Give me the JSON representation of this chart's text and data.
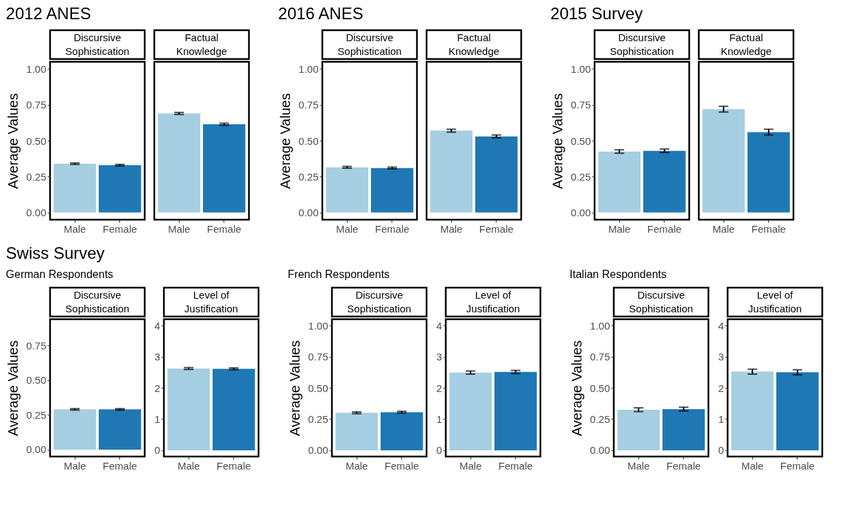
{
  "chart_data": [
    {
      "type": "bar",
      "title": "2012 ANES",
      "subtitle": "Discursive Sophistication",
      "ylabel": "Average Values",
      "categories": [
        "Male",
        "Female"
      ],
      "values": [
        0.34,
        0.33
      ],
      "errors": [
        0.005,
        0.005
      ],
      "colors": [
        "#a6cee3",
        "#1f78b4"
      ],
      "ylim": [
        -0.05,
        1.05
      ],
      "yticks": [
        {
          "value": 0,
          "label": "0.00"
        },
        {
          "value": 0.25,
          "label": "0.25"
        },
        {
          "value": 0.5,
          "label": "0.50"
        },
        {
          "value": 0.75,
          "label": "0.75"
        },
        {
          "value": 1,
          "label": "1.00"
        }
      ]
    },
    {
      "type": "bar",
      "subtitle": "Factual Knowledge",
      "categories": [
        "Male",
        "Female"
      ],
      "values": [
        0.69,
        0.615
      ],
      "errors": [
        0.007,
        0.007
      ],
      "colors": [
        "#a6cee3",
        "#1f78b4"
      ],
      "ylim": [
        -0.05,
        1.05
      ],
      "tick_labels": "x"
    },
    {
      "type": "bar",
      "title": "2016 ANES",
      "subtitle": "Discursive Sophistication",
      "ylabel": "Average Values",
      "categories": [
        "Male",
        "Female"
      ],
      "values": [
        0.315,
        0.31
      ],
      "errors": [
        0.006,
        0.006
      ],
      "colors": [
        "#a6cee3",
        "#1f78b4"
      ],
      "ylim": [
        -0.05,
        1.05
      ],
      "yticks": [
        {
          "value": 0,
          "label": "0.00"
        },
        {
          "value": 0.25,
          "label": "0.25"
        },
        {
          "value": 0.5,
          "label": "0.50"
        },
        {
          "value": 0.75,
          "label": "0.75"
        },
        {
          "value": 1,
          "label": "1.00"
        }
      ]
    },
    {
      "type": "bar",
      "subtitle": "Factual Knowledge",
      "categories": [
        "Male",
        "Female"
      ],
      "values": [
        0.57,
        0.53
      ],
      "errors": [
        0.01,
        0.01
      ],
      "colors": [
        "#a6cee3",
        "#1f78b4"
      ],
      "ylim": [
        -0.05,
        1.05
      ],
      "tick_labels": "x"
    },
    {
      "type": "bar",
      "title": "2015 Survey",
      "subtitle": "Discursive Sophistication",
      "ylabel": "Average Values",
      "categories": [
        "Male",
        "Female"
      ],
      "values": [
        0.425,
        0.43
      ],
      "errors": [
        0.012,
        0.012
      ],
      "colors": [
        "#a6cee3",
        "#1f78b4"
      ],
      "ylim": [
        -0.05,
        1.05
      ],
      "yticks": [
        {
          "value": 0,
          "label": "0.00"
        },
        {
          "value": 0.25,
          "label": "0.25"
        },
        {
          "value": 0.5,
          "label": "0.50"
        },
        {
          "value": 0.75,
          "label": "0.75"
        },
        {
          "value": 1,
          "label": "1.00"
        }
      ]
    },
    {
      "type": "bar",
      "subtitle": "Factual Knowledge",
      "categories": [
        "Male",
        "Female"
      ],
      "values": [
        0.72,
        0.56
      ],
      "errors": [
        0.02,
        0.02
      ],
      "colors": [
        "#a6cee3",
        "#1f78b4"
      ],
      "ylim": [
        -0.05,
        1.05
      ],
      "tick_labels": "x"
    },
    {
      "type": "bar",
      "title": "Swiss Survey",
      "annotations": [
        "German Respondents"
      ],
      "subtitle": "Discursive Sophistication",
      "ylabel": "Average Values",
      "categories": [
        "Male",
        "Female"
      ],
      "values": [
        0.29,
        0.29
      ],
      "errors": [
        0.005,
        0.005
      ],
      "colors": [
        "#a6cee3",
        "#1f78b4"
      ],
      "ylim": [
        -0.05,
        0.94
      ],
      "yticks": [
        {
          "value": 0,
          "label": "0.00"
        },
        {
          "value": 0.25,
          "label": "0.25"
        },
        {
          "value": 0.5,
          "label": "0.50"
        },
        {
          "value": 0.75,
          "label": "0.75"
        }
      ]
    },
    {
      "type": "bar",
      "subtitle": "Level of Justification",
      "categories": [
        "Male",
        "Female"
      ],
      "values": [
        2.62,
        2.61
      ],
      "errors": [
        0.03,
        0.03
      ],
      "colors": [
        "#a6cee3",
        "#1f78b4"
      ],
      "ylim": [
        -0.2,
        4.2
      ],
      "yticks": [
        0,
        1,
        2,
        3,
        4
      ]
    },
    {
      "type": "bar",
      "annotations": [
        "French Respondents"
      ],
      "subtitle": "Discursive Sophistication",
      "ylabel": "Average Values",
      "categories": [
        "Male",
        "Female"
      ],
      "values": [
        0.3,
        0.305
      ],
      "errors": [
        0.007,
        0.007
      ],
      "colors": [
        "#a6cee3",
        "#1f78b4"
      ],
      "ylim": [
        -0.05,
        1.05
      ],
      "yticks": [
        {
          "value": 0,
          "label": "0.00"
        },
        {
          "value": 0.25,
          "label": "0.25"
        },
        {
          "value": 0.5,
          "label": "0.50"
        },
        {
          "value": 0.75,
          "label": "0.75"
        },
        {
          "value": 1,
          "label": "1.00"
        }
      ]
    },
    {
      "type": "bar",
      "subtitle": "Level of Justification",
      "categories": [
        "Male",
        "Female"
      ],
      "values": [
        2.49,
        2.51
      ],
      "errors": [
        0.05,
        0.05
      ],
      "colors": [
        "#a6cee3",
        "#1f78b4"
      ],
      "ylim": [
        -0.2,
        4.2
      ],
      "yticks": [
        0,
        1,
        2,
        3,
        4
      ]
    },
    {
      "type": "bar",
      "annotations": [
        "Italian Respondents"
      ],
      "subtitle": "Discursive Sophistication",
      "ylabel": "Average Values",
      "categories": [
        "Male",
        "Female"
      ],
      "values": [
        0.325,
        0.33
      ],
      "errors": [
        0.015,
        0.015
      ],
      "colors": [
        "#a6cee3",
        "#1f78b4"
      ],
      "ylim": [
        -0.05,
        1.05
      ],
      "yticks": [
        {
          "value": 0,
          "label": "0.00"
        },
        {
          "value": 0.25,
          "label": "0.25"
        },
        {
          "value": 0.5,
          "label": "0.50"
        },
        {
          "value": 0.75,
          "label": "0.75"
        },
        {
          "value": 1,
          "label": "1.00"
        }
      ]
    },
    {
      "type": "bar",
      "subtitle": "Level of Justification",
      "categories": [
        "Male",
        "Female"
      ],
      "values": [
        2.52,
        2.5
      ],
      "errors": [
        0.08,
        0.08
      ],
      "colors": [
        "#a6cee3",
        "#1f78b4"
      ],
      "ylim": [
        -0.2,
        4.2
      ],
      "yticks": [
        0,
        1,
        2,
        3,
        4
      ]
    }
  ]
}
